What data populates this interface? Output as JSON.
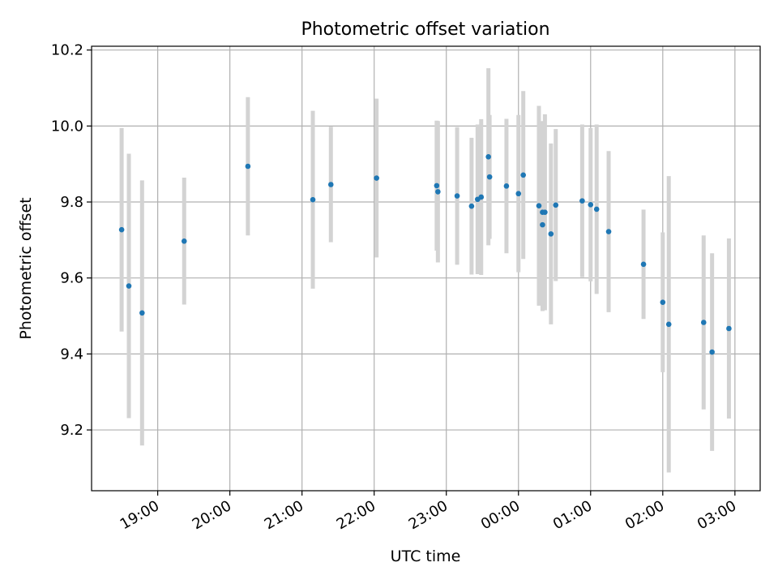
{
  "chart_data": {
    "type": "scatter",
    "title": "Photometric offset variation",
    "xlabel": "UTC time",
    "ylabel": "Photometric offset",
    "x_tick_labels": [
      "19:00",
      "20:00",
      "21:00",
      "22:00",
      "23:00",
      "00:00",
      "01:00",
      "02:00",
      "03:00"
    ],
    "x_ticks": [
      "19:00",
      "20:00",
      "21:00",
      "22:00",
      "23:00",
      "00:00",
      "01:00",
      "02:00",
      "03:00"
    ],
    "xlim": [
      "18:05",
      "03:21"
    ],
    "y_tick_labels": [
      "9.2",
      "9.4",
      "9.6",
      "9.8",
      "10.0",
      "10.2"
    ],
    "y_ticks": [
      9.2,
      9.4,
      9.6,
      9.8,
      10.0,
      10.2
    ],
    "ylim": [
      9.04,
      10.21
    ],
    "grid": true,
    "colors": {
      "points": "#1f77b4",
      "errorbars": "#d3d3d3",
      "grid": "#b0b0b0"
    },
    "points": [
      {
        "x": "18:30",
        "y": 9.727,
        "yerr": 0.268
      },
      {
        "x": "18:36",
        "y": 9.579,
        "yerr": 0.348
      },
      {
        "x": "18:47",
        "y": 9.508,
        "yerr": 0.349
      },
      {
        "x": "19:22",
        "y": 9.697,
        "yerr": 0.167
      },
      {
        "x": "20:15",
        "y": 9.894,
        "yerr": 0.182
      },
      {
        "x": "21:09",
        "y": 9.806,
        "yerr": 0.234
      },
      {
        "x": "21:24",
        "y": 9.846,
        "yerr": 0.152
      },
      {
        "x": "22:02",
        "y": 9.863,
        "yerr": 0.209
      },
      {
        "x": "22:52",
        "y": 9.843,
        "yerr": 0.171
      },
      {
        "x": "22:53",
        "y": 9.827,
        "yerr": 0.186
      },
      {
        "x": "23:09",
        "y": 9.816,
        "yerr": 0.181
      },
      {
        "x": "23:21",
        "y": 9.789,
        "yerr": 0.18
      },
      {
        "x": "23:26",
        "y": 9.807,
        "yerr": 0.197
      },
      {
        "x": "23:29",
        "y": 9.813,
        "yerr": 0.205
      },
      {
        "x": "23:35",
        "y": 9.919,
        "yerr": 0.233
      },
      {
        "x": "23:36",
        "y": 9.866,
        "yerr": 0.163
      },
      {
        "x": "23:50",
        "y": 9.842,
        "yerr": 0.177
      },
      {
        "x": "00:00",
        "y": 9.822,
        "yerr": 0.207
      },
      {
        "x": "00:04",
        "y": 9.871,
        "yerr": 0.221
      },
      {
        "x": "00:17",
        "y": 9.79,
        "yerr": 0.263
      },
      {
        "x": "00:20",
        "y": 9.74,
        "yerr": 0.227
      },
      {
        "x": "00:20",
        "y": 9.773,
        "yerr": 0.24
      },
      {
        "x": "00:22",
        "y": 9.773,
        "yerr": 0.258
      },
      {
        "x": "00:27",
        "y": 9.716,
        "yerr": 0.238
      },
      {
        "x": "00:31",
        "y": 9.792,
        "yerr": 0.2
      },
      {
        "x": "00:53",
        "y": 9.803,
        "yerr": 0.201
      },
      {
        "x": "01:00",
        "y": 9.793,
        "yerr": 0.202
      },
      {
        "x": "01:05",
        "y": 9.781,
        "yerr": 0.223
      },
      {
        "x": "01:15",
        "y": 9.722,
        "yerr": 0.212
      },
      {
        "x": "01:44",
        "y": 9.636,
        "yerr": 0.144
      },
      {
        "x": "02:00",
        "y": 9.536,
        "yerr": 0.184
      },
      {
        "x": "02:05",
        "y": 9.478,
        "yerr": 0.39
      },
      {
        "x": "02:34",
        "y": 9.483,
        "yerr": 0.229
      },
      {
        "x": "02:41",
        "y": 9.405,
        "yerr": 0.26
      },
      {
        "x": "02:55",
        "y": 9.467,
        "yerr": 0.237
      }
    ]
  }
}
